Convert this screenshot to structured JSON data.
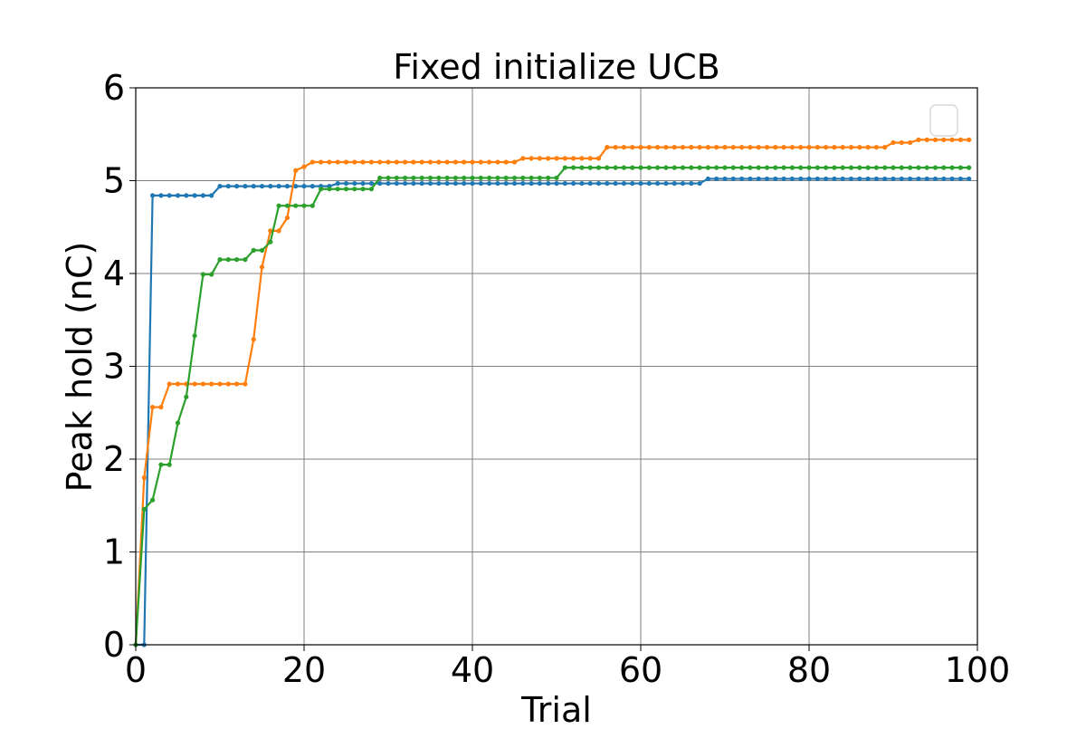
{
  "chart_data": {
    "type": "line",
    "title": "Fixed initialize UCB",
    "xlabel": "Trial",
    "ylabel": "Peak hold (nC)",
    "xlim": [
      0,
      100
    ],
    "ylim": [
      0,
      6
    ],
    "xticks": [
      "0",
      "20",
      "40",
      "60",
      "80",
      "100"
    ],
    "yticks": [
      "0",
      "1",
      "2",
      "3",
      "4",
      "5",
      "6"
    ],
    "grid": true,
    "legend": "upper right (empty)",
    "marker": "dot",
    "series": [
      {
        "color": "#1f77b4",
        "x": [
          0,
          1,
          2,
          10,
          24,
          68,
          99
        ],
        "y": [
          0,
          0,
          4.84,
          4.94,
          4.97,
          5.02,
          5.02
        ]
      },
      {
        "color": "#ff7f0e",
        "x": [
          0,
          1,
          2,
          3,
          4,
          13,
          14,
          15,
          16,
          17,
          18,
          19,
          20,
          21,
          46,
          56,
          90,
          93,
          99
        ],
        "y": [
          0,
          1.8,
          2.56,
          2.56,
          2.81,
          2.81,
          3.29,
          4.07,
          4.46,
          4.46,
          4.6,
          5.11,
          5.15,
          5.2,
          5.24,
          5.36,
          5.41,
          5.44,
          5.44
        ]
      },
      {
        "color": "#2ca02c",
        "x": [
          0,
          1,
          2,
          3,
          4,
          5,
          6,
          7,
          8,
          9,
          10,
          13,
          14,
          15,
          16,
          17,
          21,
          22,
          28,
          29,
          50,
          51,
          99
        ],
        "y": [
          0,
          1.46,
          1.56,
          1.94,
          1.94,
          2.39,
          2.67,
          3.33,
          3.99,
          3.99,
          4.15,
          4.15,
          4.25,
          4.25,
          4.34,
          4.73,
          4.73,
          4.91,
          4.91,
          5.03,
          5.03,
          5.14,
          5.14
        ]
      }
    ]
  }
}
